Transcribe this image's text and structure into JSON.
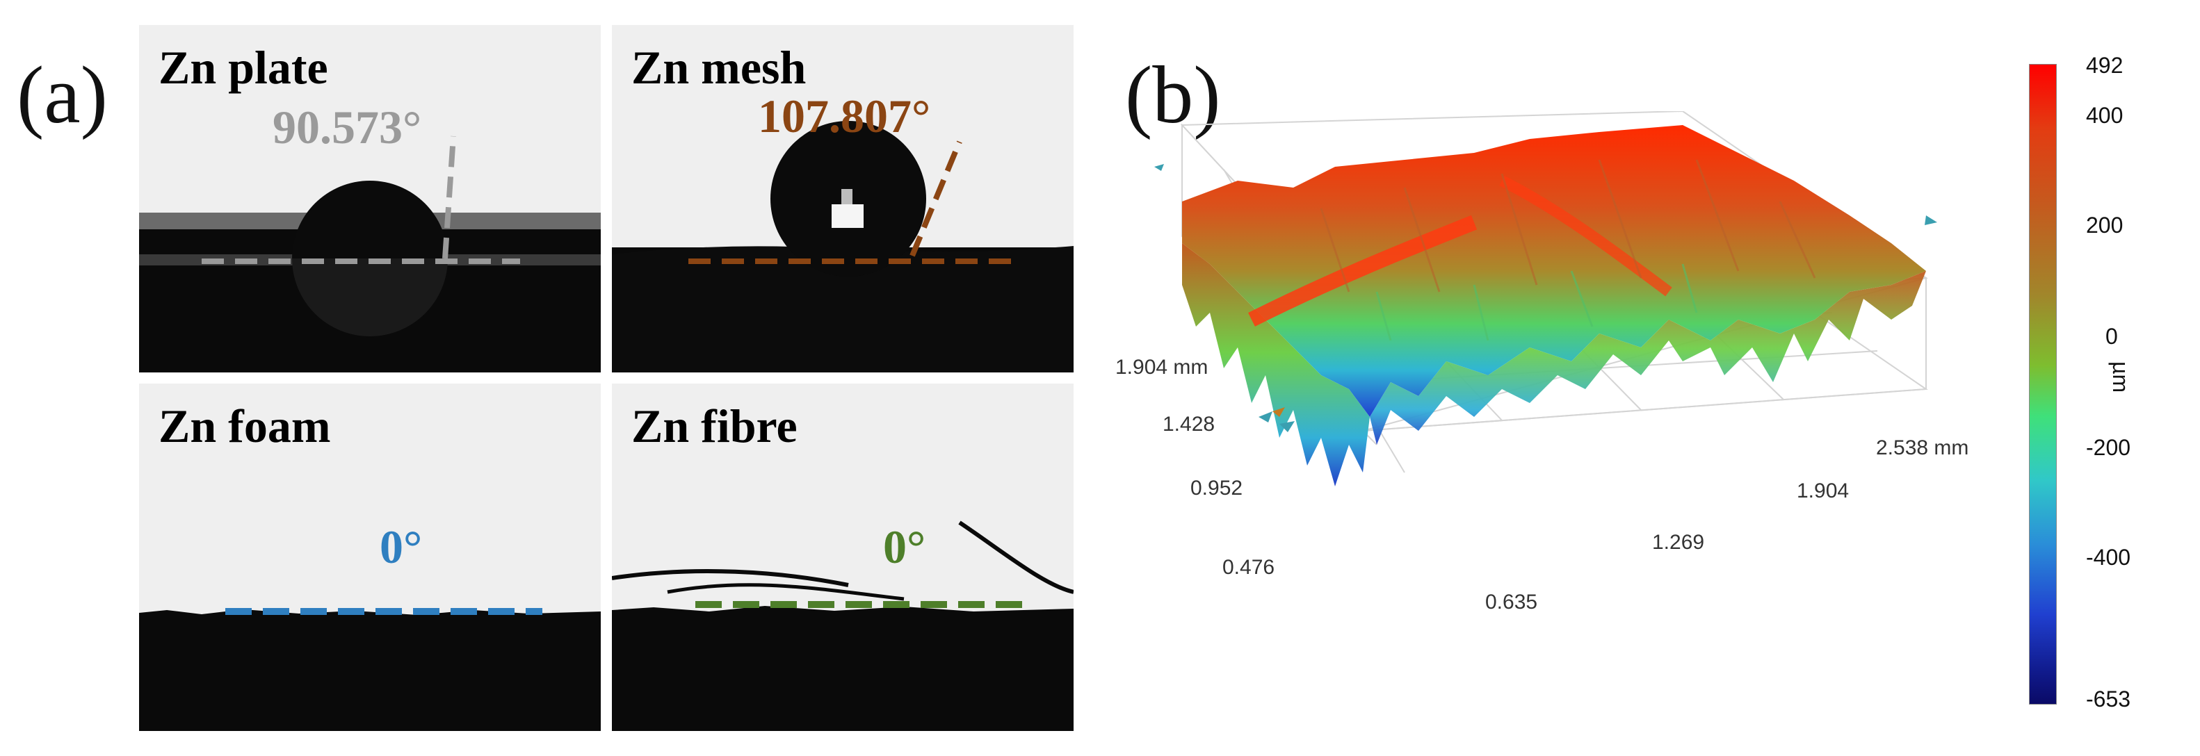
{
  "panel_a": {
    "letter": "(a)",
    "tiles": [
      {
        "title": "Zn plate",
        "angle": "90.573°",
        "color": "#9a9a9a"
      },
      {
        "title": "Zn mesh",
        "angle": "107.807°",
        "color": "#8b4513"
      },
      {
        "title": "Zn foam",
        "angle": "0°",
        "color": "#2f7fc0"
      },
      {
        "title": "Zn fibre",
        "angle": "0°",
        "color": "#4e7f2a"
      }
    ]
  },
  "panel_b": {
    "letter": "(b)",
    "axis_labels": {
      "y_max": "1.904 mm",
      "y_ticks": [
        "1.428",
        "0.952",
        "0.476"
      ],
      "x_ticks": [
        "0.635",
        "1.269",
        "1.904"
      ],
      "x_max": "2.538 mm"
    },
    "colorbar": {
      "ticks": [
        "492",
        "400",
        "200",
        "0",
        "-200",
        "-400",
        "-653"
      ],
      "unit": "µm"
    }
  }
}
